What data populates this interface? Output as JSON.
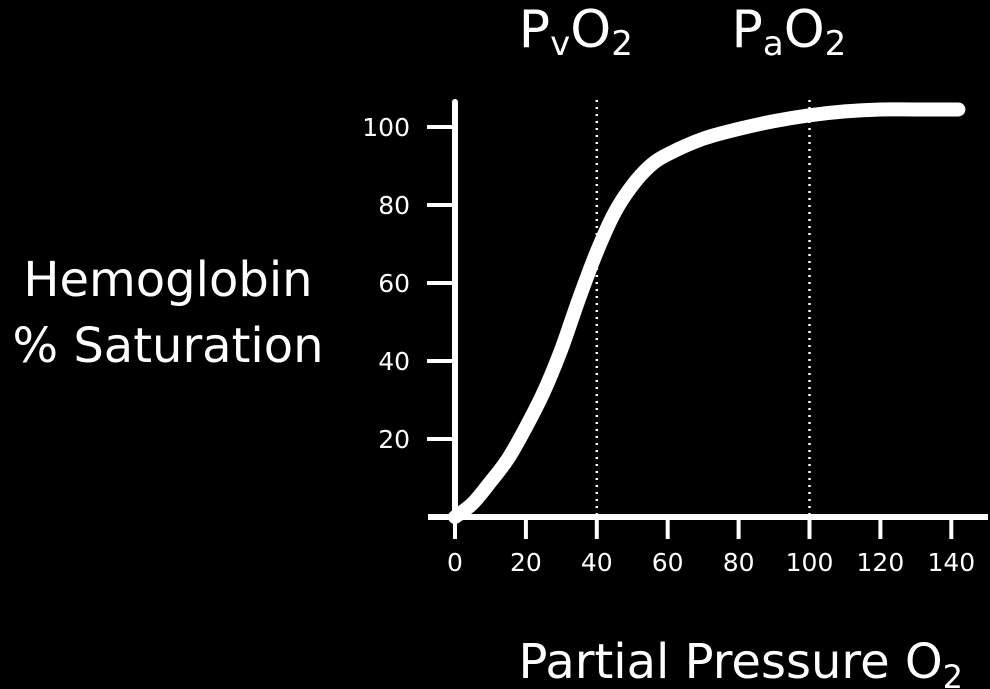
{
  "chart_data": {
    "type": "line",
    "title": "",
    "xlabel": "Partial Pressure O",
    "xlabel_sub": "2",
    "ylabel_lines": [
      "Hemoglobin",
      "% Saturation"
    ],
    "xlim": [
      0,
      142
    ],
    "ylim": [
      0,
      105
    ],
    "x_ticks": [
      0,
      20,
      40,
      60,
      80,
      100,
      120,
      140
    ],
    "y_ticks": [
      20,
      40,
      60,
      80,
      100
    ],
    "grid": false,
    "reference_lines": [
      {
        "x": 40,
        "label_main": "P",
        "label_sub": "v",
        "label_tail": "O",
        "label_tail_sub": "2"
      },
      {
        "x": 100,
        "label_main": "P",
        "label_sub": "a",
        "label_tail": "O",
        "label_tail_sub": "2"
      }
    ],
    "series": [
      {
        "points": [
          [
            0,
            0
          ],
          [
            5,
            3.5
          ],
          [
            10,
            9
          ],
          [
            15,
            15
          ],
          [
            20,
            23
          ],
          [
            25,
            32
          ],
          [
            30,
            43
          ],
          [
            35,
            56
          ],
          [
            40,
            68
          ],
          [
            45,
            78
          ],
          [
            50,
            85
          ],
          [
            55,
            90
          ],
          [
            60,
            93
          ],
          [
            70,
            97
          ],
          [
            80,
            99.5
          ],
          [
            90,
            101.5
          ],
          [
            100,
            103
          ],
          [
            110,
            104
          ],
          [
            120,
            104.5
          ],
          [
            130,
            104.5
          ],
          [
            142,
            104.5
          ]
        ]
      }
    ],
    "colors": {
      "background": "#000000",
      "foreground": "#ffffff"
    }
  }
}
